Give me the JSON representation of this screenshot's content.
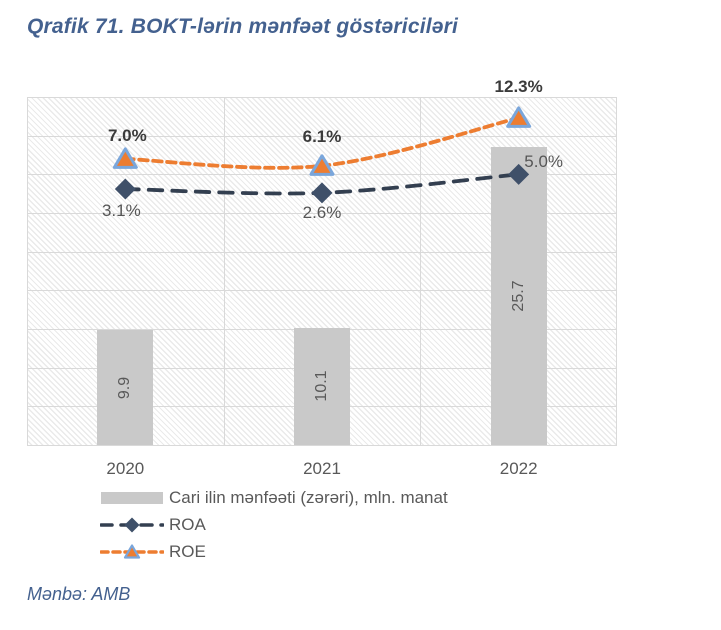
{
  "title": "Qrafik 71. BOKT-lərin mənfəət göstəriciləri",
  "source": "Mənbə: AMB",
  "colors": {
    "title_text": "#44618F",
    "bar_fill": "#C9C9C9",
    "bar_value_text": "#595959",
    "roa_line": "#333F50",
    "roa_marker": "#3F5069",
    "roe_line": "#ED7D31",
    "roe_marker_fill": "#ED7D31",
    "roe_marker_border": "#7AA6DB",
    "gridline": "#D9D9D9",
    "axis_label_text": "#595959",
    "data_label_bold": "#3B3B3B",
    "data_label_regular": "#565656",
    "legend_text": "#595959"
  },
  "chart_data": {
    "type": "combo bar + line",
    "categories": [
      "2020",
      "2021",
      "2022"
    ],
    "series": [
      {
        "name": "Cari ilin mənfəəti (zərəri), mln. manat",
        "type": "bar",
        "axis": "left",
        "values": [
          9.9,
          10.1,
          25.7
        ],
        "data_labels": [
          "9.9",
          "10.1",
          "25.7"
        ]
      },
      {
        "name": "ROA",
        "type": "line",
        "axis": "right",
        "values": [
          3.1,
          2.6,
          5.0
        ],
        "data_labels": [
          "3.1%",
          "2.6%",
          "5.0%"
        ]
      },
      {
        "name": "ROE",
        "type": "line",
        "axis": "right",
        "values": [
          7.0,
          6.1,
          12.3
        ],
        "data_labels": [
          "7.0%",
          "6.1%",
          "12.3%"
        ]
      }
    ],
    "axes": {
      "left": {
        "min": 0,
        "max": 30,
        "visible": false
      },
      "right": {
        "min": -30,
        "max": 15,
        "visible": false
      }
    },
    "gridlines": {
      "horizontal_divisions": 9,
      "vertical_divisions": 3,
      "style": "hatched plot background"
    },
    "legend_position": "bottom-left",
    "line_style": "smoothed dashed"
  }
}
